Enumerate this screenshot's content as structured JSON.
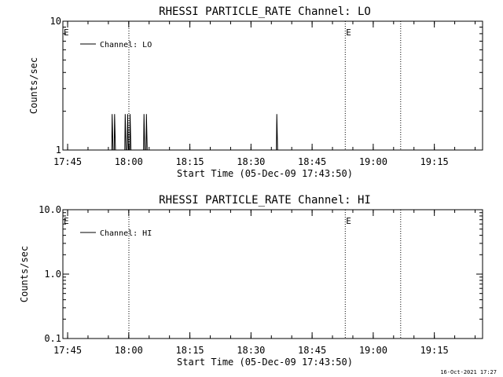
{
  "footer": {
    "timestamp": "16-Oct-2021 17:27"
  },
  "chart_data": [
    {
      "type": "line",
      "title": "RHESSI PARTICLE_RATE Channel: LO",
      "xlabel": "Start Time (05-Dec-09 17:43:50)",
      "ylabel": "Counts/sec",
      "x_unit": "minutes after 17:43:50",
      "xlim": [
        0,
        103
      ],
      "ylim": [
        1,
        10
      ],
      "y_scale": "log",
      "x_tick_labels": [
        "17:45",
        "18:00",
        "18:15",
        "18:30",
        "18:45",
        "19:00",
        "19:15"
      ],
      "y_tick_labels": [
        "1",
        "10"
      ],
      "legend": {
        "position": "top-left",
        "entries": [
          "Channel: LO"
        ]
      },
      "event_label": "E",
      "event_lines": [
        16.2,
        69.3,
        82.9
      ],
      "event_markers": [
        0,
        69.3
      ],
      "series": [
        {
          "name": "Channel: LO",
          "points": [
            [
              0,
              1
            ],
            [
              12.0,
              1
            ],
            [
              12.1,
              1.9
            ],
            [
              12.3,
              1
            ],
            [
              12.6,
              1
            ],
            [
              12.7,
              1.9
            ],
            [
              12.9,
              1
            ],
            [
              15.2,
              1
            ],
            [
              15.3,
              1.9
            ],
            [
              15.5,
              1
            ],
            [
              15.8,
              1
            ],
            [
              15.9,
              1.9
            ],
            [
              16.1,
              1
            ],
            [
              16.4,
              1
            ],
            [
              16.5,
              1.9
            ],
            [
              16.7,
              1
            ],
            [
              19.8,
              1
            ],
            [
              19.9,
              1.9
            ],
            [
              20.1,
              1
            ],
            [
              20.4,
              1
            ],
            [
              20.5,
              1.9
            ],
            [
              20.7,
              1
            ],
            [
              52.4,
              1
            ],
            [
              52.5,
              1.9
            ],
            [
              52.7,
              1
            ],
            [
              103,
              1
            ]
          ]
        }
      ]
    },
    {
      "type": "line",
      "title": "RHESSI PARTICLE_RATE Channel: HI",
      "xlabel": "Start Time (05-Dec-09 17:43:50)",
      "ylabel": "Counts/sec",
      "x_unit": "minutes after 17:43:50",
      "xlim": [
        0,
        103
      ],
      "ylim": [
        0.1,
        10
      ],
      "y_scale": "log",
      "x_tick_labels": [
        "17:45",
        "18:00",
        "18:15",
        "18:30",
        "18:45",
        "19:00",
        "19:15"
      ],
      "y_tick_labels": [
        "0.1",
        "1.0",
        "10.0"
      ],
      "legend": {
        "position": "top-left",
        "entries": [
          "Channel: HI"
        ]
      },
      "event_label": "E",
      "event_lines": [
        16.2,
        69.3,
        82.9
      ],
      "event_markers": [
        0,
        69.3
      ],
      "series": [
        {
          "name": "Channel: HI",
          "points": []
        }
      ]
    }
  ]
}
